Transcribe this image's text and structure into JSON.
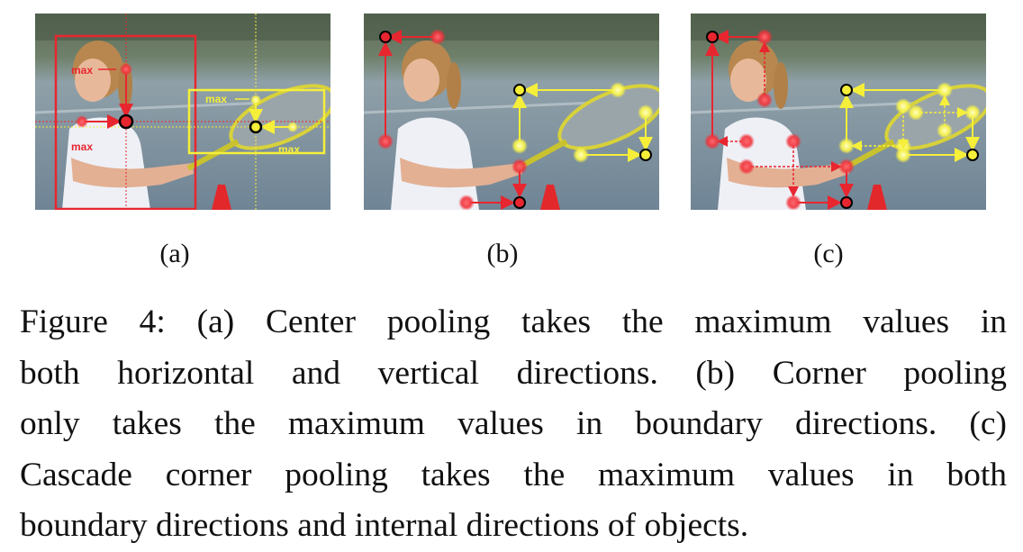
{
  "panels": [
    {
      "id": "a",
      "label": "(a)",
      "max_labels": [
        "max",
        "max",
        "max",
        "max"
      ]
    },
    {
      "id": "b",
      "label": "(b)"
    },
    {
      "id": "c",
      "label": "(c)"
    }
  ],
  "caption": {
    "lines": [
      "Figure 4: (a) Center pooling takes the maximum values in",
      "both horizontal and vertical directions. (b) Corner pooling",
      "only takes the maximum values in boundary directions. (c)",
      "Cascade corner pooling takes the maximum values in both",
      "boundary directions and internal directions of objects."
    ]
  },
  "colors": {
    "red": "#e8262f",
    "yellow": "#f5ef3a",
    "dark_red": "#c4121b"
  }
}
